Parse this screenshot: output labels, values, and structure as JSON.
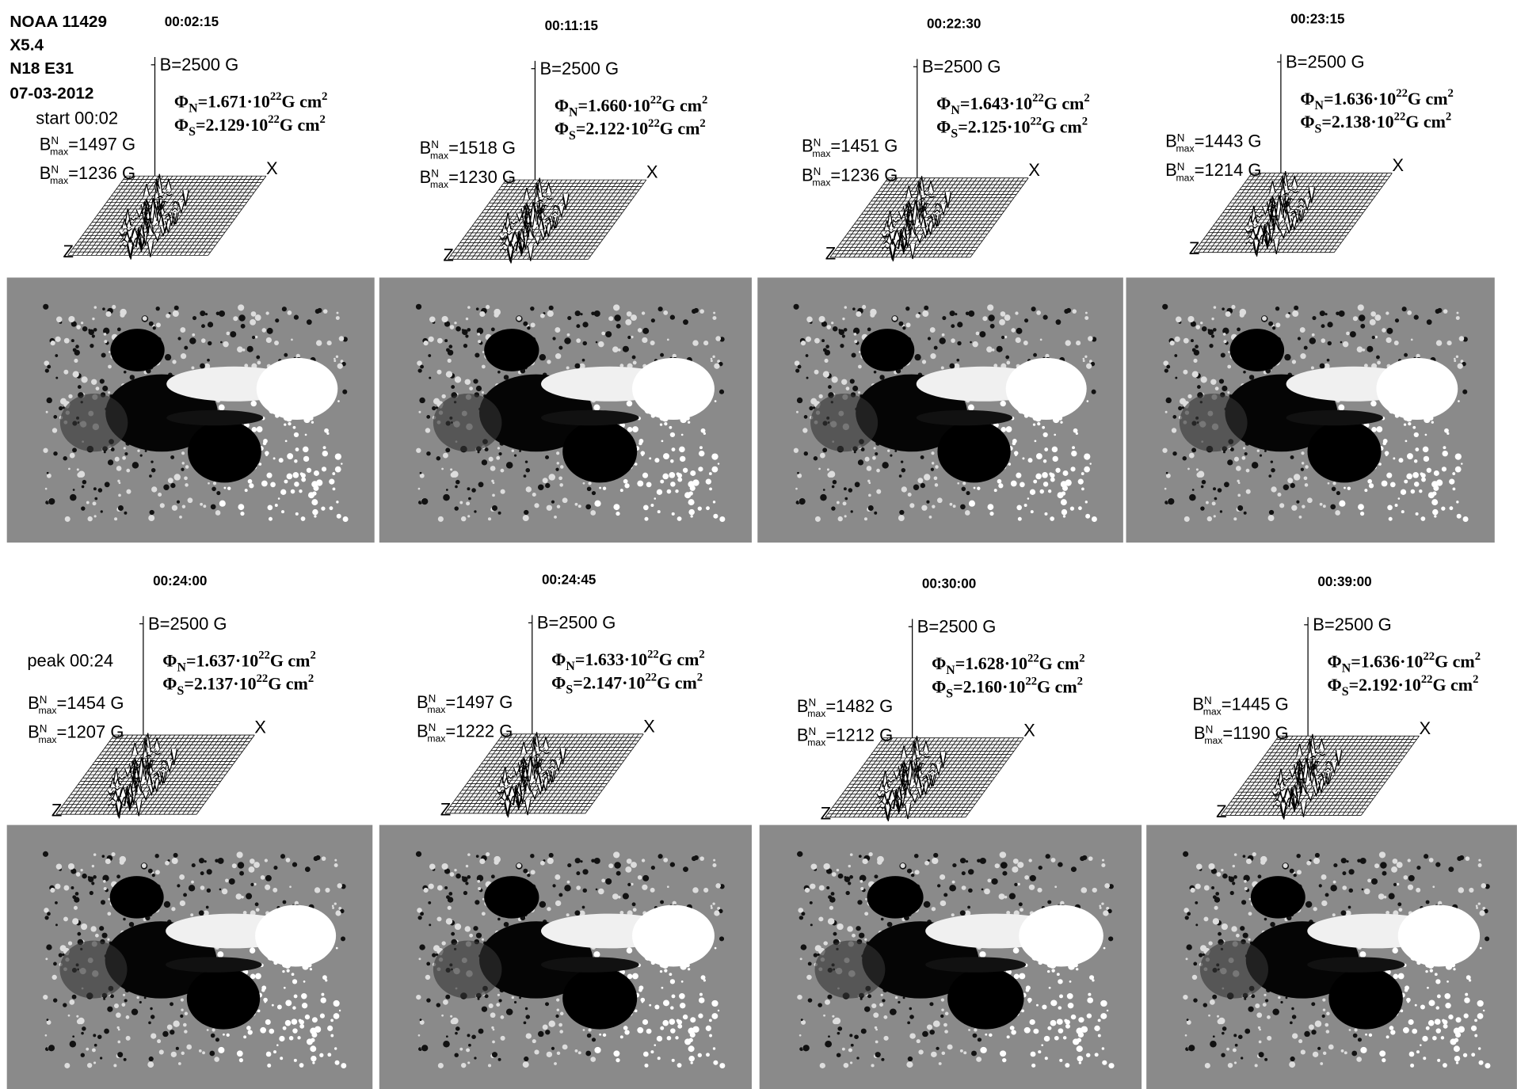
{
  "header": {
    "region": "NOAA 11429",
    "class": "X5.4",
    "location": "N18 E31",
    "date": "07-03-2012",
    "start": "start 00:02",
    "peak": "peak 00:24"
  },
  "panels": [
    {
      "time": "00:02:15",
      "b_label": "B=2500 G",
      "phi_n": [
        "Φ",
        "N",
        "=1.671·10",
        "22",
        "G cm",
        "2"
      ],
      "phi_s": [
        "Φ",
        "S",
        "=2.129·10",
        "22",
        "G cm",
        "2"
      ],
      "bmax_n": [
        "B",
        "N",
        "max",
        "=1497 G"
      ],
      "bmax_s": [
        "B",
        "N",
        "max",
        "=1236 G"
      ]
    },
    {
      "time": "00:11:15",
      "b_label": "B=2500 G",
      "phi_n": [
        "Φ",
        "N",
        "=1.660·10",
        "22",
        "G cm",
        "2"
      ],
      "phi_s": [
        "Φ",
        "S",
        "=2.122·10",
        "22",
        "G cm",
        "2"
      ],
      "bmax_n": [
        "B",
        "N",
        "max",
        "=1518 G"
      ],
      "bmax_s": [
        "B",
        "N",
        "max",
        "=1230 G"
      ]
    },
    {
      "time": "00:22:30",
      "b_label": "B=2500 G",
      "phi_n": [
        "Φ",
        "N",
        "=1.643·10",
        "22",
        "G cm",
        "2"
      ],
      "phi_s": [
        "Φ",
        "S",
        "=2.125·10",
        "22",
        "G cm",
        "2"
      ],
      "bmax_n": [
        "B",
        "N",
        "max",
        "=1451 G"
      ],
      "bmax_s": [
        "B",
        "N",
        "max",
        "=1236 G"
      ]
    },
    {
      "time": "00:23:15",
      "b_label": "B=2500 G",
      "phi_n": [
        "Φ",
        "N",
        "=1.636·10",
        "22",
        "G cm",
        "2"
      ],
      "phi_s": [
        "Φ",
        "S",
        "=2.138·10",
        "22",
        "G cm",
        "2"
      ],
      "bmax_n": [
        "B",
        "N",
        "max",
        "=1443 G"
      ],
      "bmax_s": [
        "B",
        "N",
        "max",
        "=1214 G"
      ]
    },
    {
      "time": "00:24:00",
      "b_label": "B=2500 G",
      "phi_n": [
        "Φ",
        "N",
        "=1.637·10",
        "22",
        "G cm",
        "2"
      ],
      "phi_s": [
        "Φ",
        "S",
        "=2.137·10",
        "22",
        "G cm",
        "2"
      ],
      "bmax_n": [
        "B",
        "N",
        "max",
        "=1454 G"
      ],
      "bmax_s": [
        "B",
        "N",
        "max",
        "=1207 G"
      ]
    },
    {
      "time": "00:24:45",
      "b_label": "B=2500 G",
      "phi_n": [
        "Φ",
        "N",
        "=1.633·10",
        "22",
        "G cm",
        "2"
      ],
      "phi_s": [
        "Φ",
        "S",
        "=2.147·10",
        "22",
        "G cm",
        "2"
      ],
      "bmax_n": [
        "B",
        "N",
        "max",
        "=1497 G"
      ],
      "bmax_s": [
        "B",
        "N",
        "max",
        "=1222 G"
      ]
    },
    {
      "time": "00:30:00",
      "b_label": "B=2500 G",
      "phi_n": [
        "Φ",
        "N",
        "=1.628·10",
        "22",
        "G cm",
        "2"
      ],
      "phi_s": [
        "Φ",
        "S",
        "=2.160·10",
        "22",
        "G cm",
        "2"
      ],
      "bmax_n": [
        "B",
        "N",
        "max",
        "=1482 G"
      ],
      "bmax_s": [
        "B",
        "N",
        "max",
        "=1212 G"
      ]
    },
    {
      "time": "00:39:00",
      "b_label": "B=2500 G",
      "phi_n": [
        "Φ",
        "N",
        "=1.636·10",
        "22",
        "G cm",
        "2"
      ],
      "phi_s": [
        "Φ",
        "S",
        "=2.192·10",
        "22",
        "G cm",
        "2"
      ],
      "bmax_n": [
        "B",
        "N",
        "max",
        "=1445 G"
      ],
      "bmax_s": [
        "B",
        "N",
        "max",
        "=1190 G"
      ]
    }
  ],
  "axes": {
    "x": "X",
    "z": "Z"
  }
}
